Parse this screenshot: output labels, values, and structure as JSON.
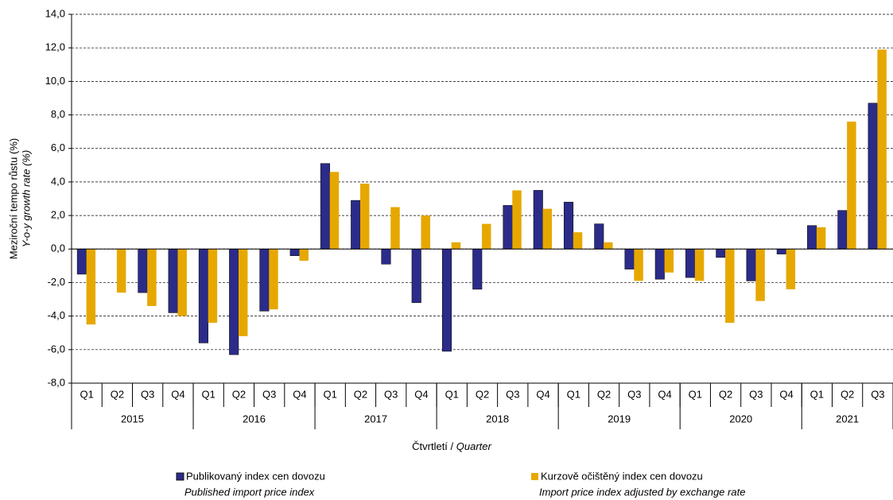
{
  "chart_data": {
    "type": "bar",
    "y_label": "Meziroční tempo růstu (%)",
    "y_label_en": "Y-o-y growth rate (%)",
    "x_label": "Čtvrtletí /",
    "x_label_en": "Quarter",
    "categories": [
      "Q1",
      "Q2",
      "Q3",
      "Q4",
      "Q1",
      "Q2",
      "Q3",
      "Q4",
      "Q1",
      "Q2",
      "Q3",
      "Q4",
      "Q1",
      "Q2",
      "Q3",
      "Q4",
      "Q1",
      "Q2",
      "Q3",
      "Q4",
      "Q1",
      "Q2",
      "Q3",
      "Q4",
      "Q1",
      "Q2",
      "Q3"
    ],
    "years": [
      "2015",
      "2016",
      "2017",
      "2018",
      "2019",
      "2020",
      "2021"
    ],
    "series": [
      {
        "name": "Publikovaný index cen dovozu",
        "name_en": "Published import price index",
        "color": "#2b2b8a",
        "values": [
          -1.5,
          0,
          -2.6,
          -3.8,
          -5.6,
          -6.3,
          -3.7,
          -0.4,
          5.1,
          2.9,
          -0.9,
          -3.2,
          -6.1,
          -2.4,
          2.6,
          3.5,
          2.8,
          1.5,
          -1.2,
          -1.8,
          -1.7,
          -0.5,
          -1.9,
          -0.3,
          1.4,
          2.3,
          8.7
        ]
      },
      {
        "name": "Kurzově očištěný index cen dovozu",
        "name_en": "Import price index adjusted by exchange rate",
        "color": "#e6a800",
        "values": [
          -4.5,
          -2.6,
          -3.4,
          -4.0,
          -4.4,
          -5.2,
          -3.6,
          -0.7,
          4.6,
          3.9,
          2.5,
          2.0,
          0.4,
          1.5,
          3.5,
          2.4,
          1.0,
          0.4,
          -1.9,
          -1.4,
          -1.9,
          -4.4,
          -3.1,
          -2.4,
          1.3,
          7.6,
          11.9
        ]
      }
    ],
    "ylim": [
      -8,
      14
    ],
    "yticks": [
      {
        "value": -8,
        "label": "-8,0"
      },
      {
        "value": -6,
        "label": "-6,0"
      },
      {
        "value": -4,
        "label": "-4,0"
      },
      {
        "value": -2,
        "label": "-2,0"
      },
      {
        "value": 0,
        "label": "0,0"
      },
      {
        "value": 2,
        "label": "2,0"
      },
      {
        "value": 4,
        "label": "4,0"
      },
      {
        "value": 6,
        "label": "6,0"
      },
      {
        "value": 8,
        "label": "8,0"
      },
      {
        "value": 10,
        "label": "10,0"
      },
      {
        "value": 12,
        "label": "12,0"
      },
      {
        "value": 14,
        "label": "14,0"
      }
    ],
    "grid": true
  }
}
